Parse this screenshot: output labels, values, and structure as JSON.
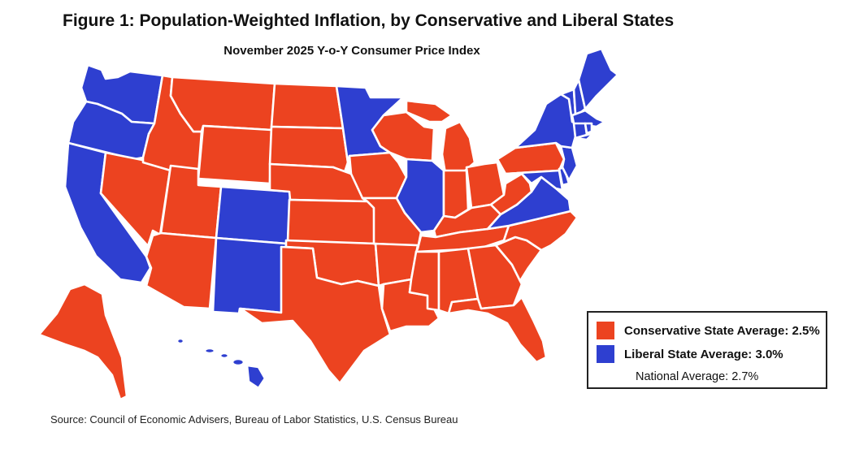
{
  "figure": {
    "title": "Figure 1: Population-Weighted Inflation, by Conservative and Liberal States",
    "subtitle": "November 2025 Y-o-Y Consumer Price Index",
    "source": "Source: Council of Economic Advisers, Bureau of Labor Statistics, U.S. Census Bureau"
  },
  "colors": {
    "conservative": "#ec4320",
    "liberal": "#2e3fd0",
    "border": "#ffffff"
  },
  "legend": {
    "conservative_label": "Conservative State Average: 2.5%",
    "liberal_label": "Liberal State Average: 3.0%",
    "national_label": "National Average: 2.7%"
  },
  "averages": {
    "conservative_pct": 2.5,
    "liberal_pct": 3.0,
    "national_pct": 2.7
  },
  "states": {
    "conservative": [
      "ID",
      "MT",
      "WY",
      "NV",
      "UT",
      "AZ",
      "ND",
      "SD",
      "NE",
      "KS",
      "OK",
      "TX",
      "IA",
      "MO",
      "AR",
      "LA",
      "WI",
      "MI",
      "IN",
      "OH",
      "KY",
      "TN",
      "MS",
      "AL",
      "GA",
      "FL",
      "SC",
      "NC",
      "WV",
      "PA",
      "AK"
    ],
    "liberal": [
      "WA",
      "OR",
      "CA",
      "CO",
      "NM",
      "MN",
      "IL",
      "VA",
      "MD",
      "DE",
      "NJ",
      "NY",
      "CT",
      "RI",
      "MA",
      "VT",
      "NH",
      "ME",
      "HI"
    ]
  }
}
